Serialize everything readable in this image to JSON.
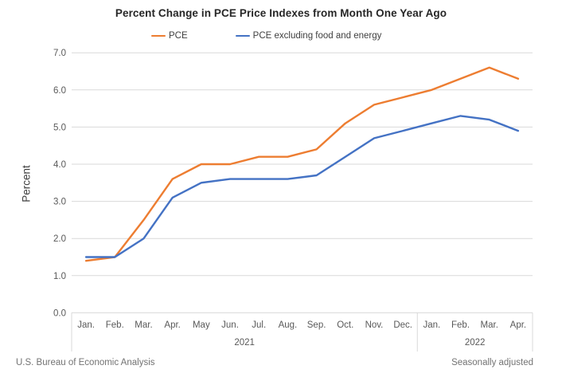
{
  "title": "Percent Change in PCE Price Indexes from Month One Year Ago",
  "footer": {
    "left": "U.S. Bureau of Economic Analysis",
    "right": "Seasonally adjusted"
  },
  "colors": {
    "pce_line": "#ED7D31",
    "core_line": "#4472C4",
    "gridline": "#D9D9D9",
    "tick_label": "#595959",
    "footer_text": "#737373"
  },
  "chart_data": {
    "type": "line",
    "title": "Percent Change in PCE Price Indexes from Month One Year Ago",
    "xlabel": "",
    "ylabel": "Percent",
    "ylim": [
      0,
      7
    ],
    "ytick_interval": 1.0,
    "ytick_labels": [
      "0.0",
      "1.0",
      "2.0",
      "3.0",
      "4.0",
      "5.0",
      "6.0",
      "7.0"
    ],
    "grid": true,
    "legend_position": "top",
    "categories": [
      "Jan.",
      "Feb.",
      "Mar.",
      "Apr.",
      "May",
      "Jun.",
      "Jul.",
      "Aug.",
      "Sep.",
      "Oct.",
      "Nov.",
      "Dec.",
      "Jan.",
      "Feb.",
      "Mar.",
      "Apr."
    ],
    "year_groups": [
      {
        "label": "2021",
        "months": 12
      },
      {
        "label": "2022",
        "months": 4
      }
    ],
    "series": [
      {
        "name": "PCE",
        "color": "#ED7D31",
        "values": [
          1.4,
          1.5,
          2.5,
          3.6,
          4.0,
          4.0,
          4.2,
          4.2,
          4.4,
          5.1,
          5.6,
          5.8,
          6.0,
          6.3,
          6.6,
          6.3
        ]
      },
      {
        "name": "PCE excluding food and energy",
        "color": "#4472C4",
        "values": [
          1.5,
          1.5,
          2.0,
          3.1,
          3.5,
          3.6,
          3.6,
          3.6,
          3.7,
          4.2,
          4.7,
          4.9,
          5.1,
          5.3,
          5.2,
          4.9
        ]
      }
    ]
  }
}
